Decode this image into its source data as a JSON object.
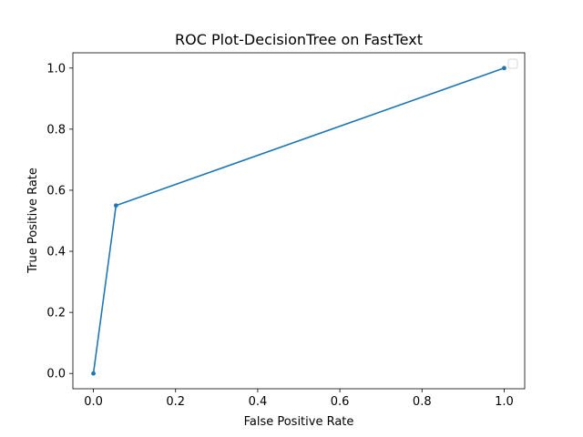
{
  "chart_data": {
    "type": "line",
    "title": "ROC Plot-DecisionTree on FastText",
    "xlabel": "False Positive Rate",
    "ylabel": "True Positive Rate",
    "xlim": [
      -0.05,
      1.05
    ],
    "ylim": [
      -0.05,
      1.05
    ],
    "xticks": [
      0.0,
      0.2,
      0.4,
      0.6,
      0.8,
      1.0
    ],
    "xtick_labels": [
      "0.0",
      "0.2",
      "0.4",
      "0.6",
      "0.8",
      "1.0"
    ],
    "yticks": [
      0.0,
      0.2,
      0.4,
      0.6,
      0.8,
      1.0
    ],
    "ytick_labels": [
      "0.0",
      "0.2",
      "0.4",
      "0.6",
      "0.8",
      "1.0"
    ],
    "grid": false,
    "legend": "upper right, empty",
    "series": [
      {
        "x": [
          0.0,
          0.055,
          1.0
        ],
        "y": [
          0.0,
          0.55,
          1.0
        ],
        "color": "#1f77b4",
        "marker": "point"
      }
    ]
  }
}
